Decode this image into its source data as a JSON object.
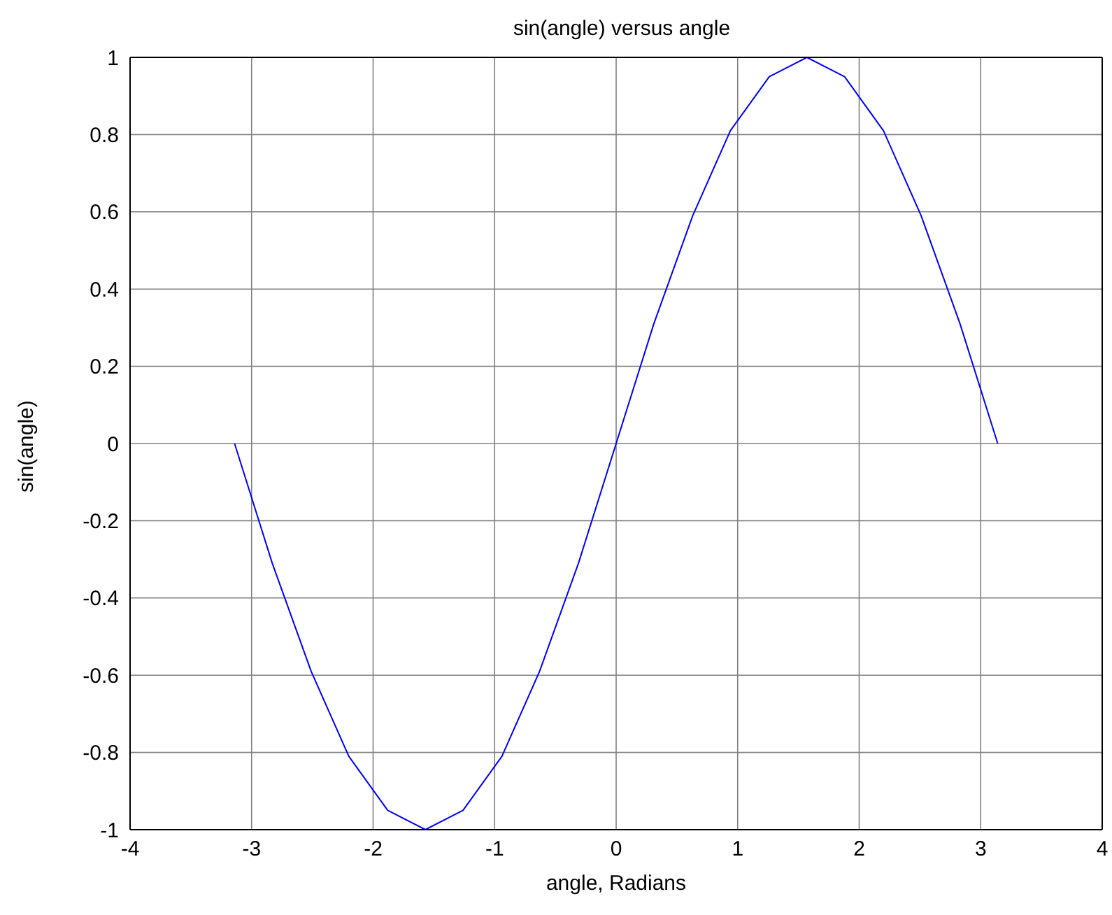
{
  "chart_data": {
    "type": "line",
    "title": "sin(angle) versus angle",
    "xlabel": "angle, Radians",
    "ylabel": "sin(angle)",
    "x": [
      -3.14,
      -2.83,
      -2.51,
      -2.2,
      -1.88,
      -1.57,
      -1.26,
      -0.94,
      -0.63,
      -0.31,
      0,
      0.31,
      0.63,
      0.94,
      1.26,
      1.57,
      1.88,
      2.2,
      2.51,
      2.83,
      3.14
    ],
    "series": [
      {
        "color": "#0000ff",
        "values": [
          0,
          -0.31,
          -0.59,
          -0.81,
          -0.95,
          -1,
          -0.95,
          -0.81,
          -0.59,
          -0.31,
          0,
          0.31,
          0.59,
          0.81,
          0.95,
          1,
          0.95,
          0.81,
          0.59,
          0.31,
          0
        ]
      }
    ],
    "xlim": [
      -4,
      4
    ],
    "xticks": [
      -4,
      -3,
      -2,
      -1,
      0,
      1,
      2,
      3,
      4
    ],
    "ylim": [
      -1,
      1
    ],
    "yticks": [
      -1,
      -0.8,
      -0.6,
      -0.4,
      -0.2,
      0,
      0.2,
      0.4,
      0.6,
      0.8,
      1
    ],
    "grid": true,
    "marker": "none",
    "line_style": "solid"
  }
}
